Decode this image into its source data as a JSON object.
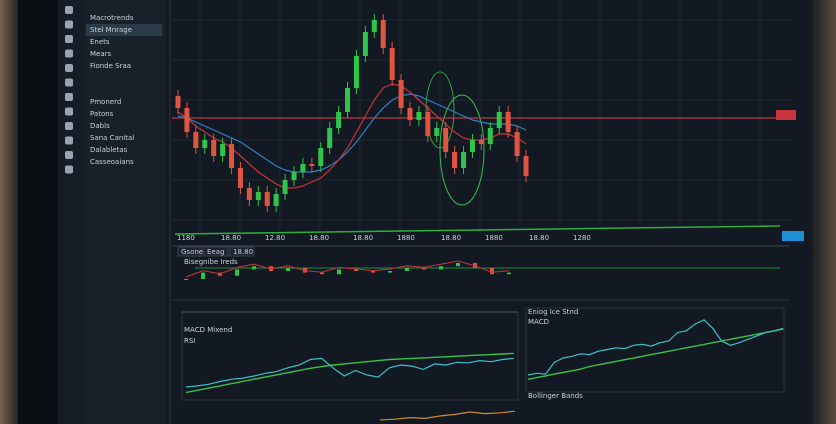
{
  "sidebar": {
    "items": [
      "Macrotrends",
      "Stel Mnrage",
      "Enets",
      "Mears",
      "Fionde Sraa",
      "Pmonerd",
      "Patons",
      "Dabls",
      "Sana Canital",
      "Dalabletas",
      "Casseoaians"
    ]
  },
  "main_chart": {
    "x_labels": [
      "1180",
      "18.80",
      "12.80",
      "18.80",
      "18.80",
      "1880",
      "18.80",
      "1880",
      "18.80",
      "1280"
    ],
    "open": [
      68,
      62,
      50,
      42,
      46,
      38,
      44,
      32,
      22,
      16,
      20,
      13,
      19,
      26,
      30,
      34,
      33,
      42,
      52,
      60,
      72,
      88,
      100,
      106,
      92,
      76,
      62,
      56,
      60,
      48,
      52,
      40,
      32,
      40,
      46,
      44,
      52,
      60,
      50,
      38
    ],
    "high": [
      71,
      65,
      53,
      49,
      49,
      47,
      47,
      35,
      25,
      23,
      23,
      22,
      29,
      33,
      37,
      37,
      45,
      55,
      63,
      75,
      91,
      103,
      109,
      109,
      95,
      79,
      65,
      63,
      63,
      55,
      55,
      43,
      43,
      49,
      49,
      55,
      63,
      63,
      53,
      41
    ],
    "low": [
      59,
      47,
      39,
      39,
      35,
      35,
      29,
      19,
      13,
      13,
      10,
      10,
      16,
      23,
      27,
      30,
      30,
      39,
      49,
      57,
      69,
      85,
      97,
      89,
      73,
      59,
      53,
      53,
      45,
      45,
      37,
      29,
      29,
      37,
      41,
      41,
      49,
      47,
      35,
      25
    ],
    "close": [
      62,
      50,
      42,
      46,
      38,
      44,
      32,
      22,
      16,
      20,
      13,
      19,
      26,
      30,
      34,
      33,
      42,
      52,
      60,
      72,
      88,
      100,
      106,
      92,
      76,
      62,
      56,
      60,
      48,
      52,
      40,
      32,
      40,
      46,
      44,
      52,
      60,
      50,
      38,
      28
    ],
    "ma_fast": [
      60,
      57,
      53,
      50,
      47,
      45,
      42,
      38,
      34,
      30,
      27,
      24,
      22,
      22,
      23,
      25,
      27,
      31,
      36,
      42,
      50,
      58,
      66,
      72,
      74,
      73,
      70,
      66,
      62,
      58,
      54,
      50,
      47,
      46,
      46,
      47,
      49,
      49,
      47,
      44
    ],
    "ma_slow": [
      58,
      57,
      55,
      53,
      51,
      49,
      47,
      45,
      42,
      39,
      36,
      33,
      31,
      30,
      30,
      30,
      31,
      33,
      36,
      40,
      45,
      51,
      57,
      62,
      66,
      68,
      69,
      68,
      66,
      64,
      62,
      60,
      58,
      56,
      55,
      54,
      54,
      54,
      53,
      51
    ],
    "level": 57
  },
  "tabs": [
    "Gsone",
    "Eeag",
    "18.80"
  ],
  "panels": [
    {
      "title": "Bisegnibe Ireds",
      "values": [
        10,
        14,
        12,
        16,
        18,
        15,
        17,
        14,
        13,
        16,
        15,
        14,
        15,
        17,
        16,
        18,
        20,
        17,
        13,
        14
      ]
    },
    {
      "title": "MACD Mixend",
      "subtitle": "RSI",
      "values": [
        20,
        22,
        25,
        30,
        34,
        36,
        40,
        45,
        48,
        55,
        60,
        70,
        72,
        55,
        40,
        50,
        42,
        38,
        55,
        60,
        58,
        52,
        62,
        60,
        65,
        64,
        68,
        66,
        70,
        72
      ],
      "signal": [
        10,
        14,
        18,
        22,
        26,
        30,
        34,
        38,
        42,
        46,
        50,
        54,
        57,
        60,
        62,
        64,
        66,
        68,
        70,
        71,
        72,
        73,
        74,
        75,
        76,
        77,
        78,
        79,
        80,
        81
      ]
    },
    {
      "title": "Eniog Ice Stnd",
      "subtitle": "MACD",
      "values": [
        20,
        22,
        21,
        35,
        40,
        42,
        45,
        44,
        48,
        50,
        52,
        51,
        55,
        56,
        54,
        58,
        60,
        70,
        72,
        80,
        85,
        75,
        60,
        55,
        58,
        62,
        66,
        70,
        72,
        75
      ],
      "signal": [
        15,
        17,
        19,
        21,
        23,
        25,
        27,
        30,
        32,
        34,
        36,
        38,
        40,
        42,
        44,
        46,
        48,
        50,
        52,
        54,
        56,
        58,
        60,
        62,
        64,
        66,
        68,
        70,
        72,
        74
      ]
    },
    {
      "title": "Bollinger Bands",
      "values": [
        5,
        6,
        8,
        7,
        10,
        12,
        15,
        13,
        14,
        16
      ]
    }
  ]
}
